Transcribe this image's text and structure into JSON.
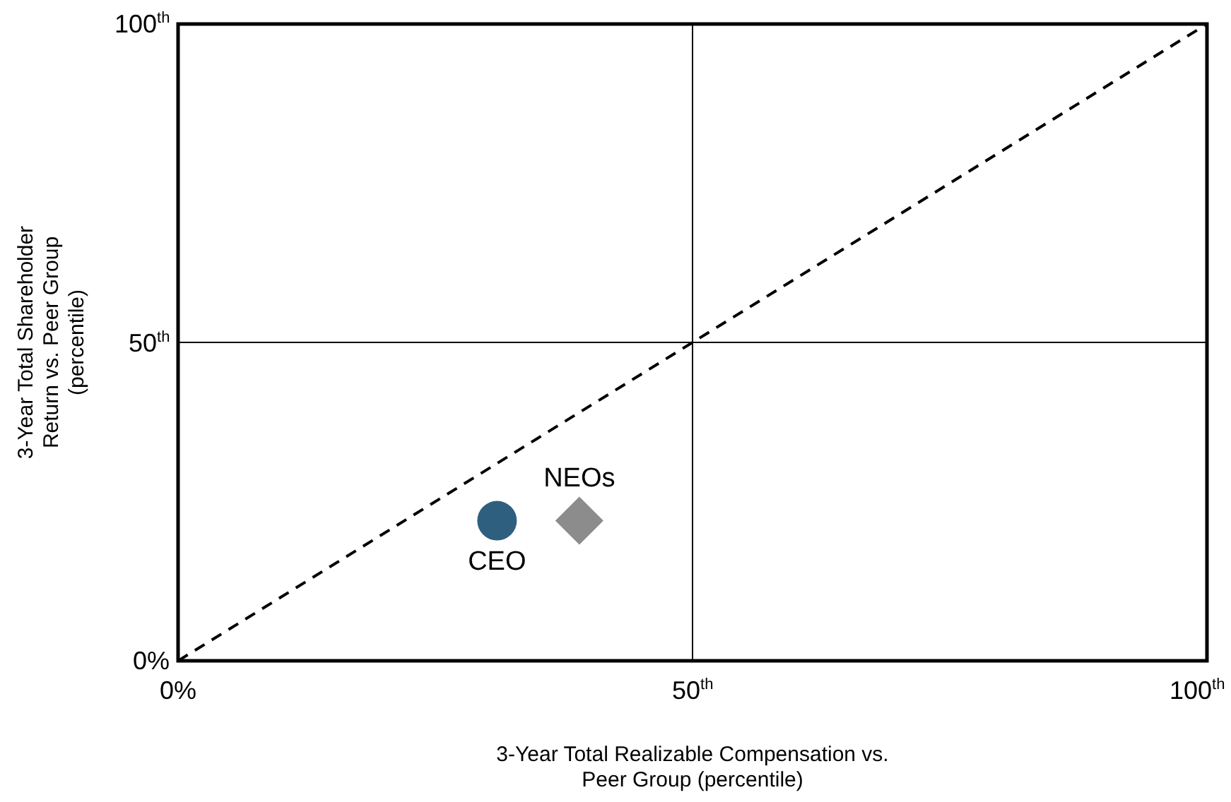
{
  "chart_data": {
    "type": "scatter",
    "xlabel": "3-Year Total Realizable Compensation vs. Peer Group (percentile)",
    "ylabel": "3-Year Total Shareholder Return vs. Peer Group (percentile)",
    "xlim": [
      0,
      100
    ],
    "ylim": [
      0,
      100
    ],
    "xticks": [
      {
        "value": 0,
        "label": "0%"
      },
      {
        "value": 50,
        "label": "50$^{th}$"
      },
      {
        "value": 100,
        "label": "100$^{th}$"
      }
    ],
    "yticks": [
      {
        "value": 0,
        "label": "0%"
      },
      {
        "value": 50,
        "label": "50$^{th}$"
      },
      {
        "value": 100,
        "label": "100$^{th}$"
      }
    ],
    "grid": true,
    "legend": false,
    "series": [
      {
        "type": "line",
        "x": [
          0,
          100
        ],
        "values": [
          0,
          100
        ],
        "color": "#000000",
        "line_style": "dashed",
        "marker": "none"
      },
      {
        "name": "CEO",
        "x": [
          31
        ],
        "values": [
          22
        ],
        "color": "#2e5f7f",
        "marker": "circle"
      },
      {
        "name": "NEOs",
        "x": [
          39
        ],
        "values": [
          22
        ],
        "color": "#8c8c8c",
        "marker": "diamond"
      }
    ]
  }
}
